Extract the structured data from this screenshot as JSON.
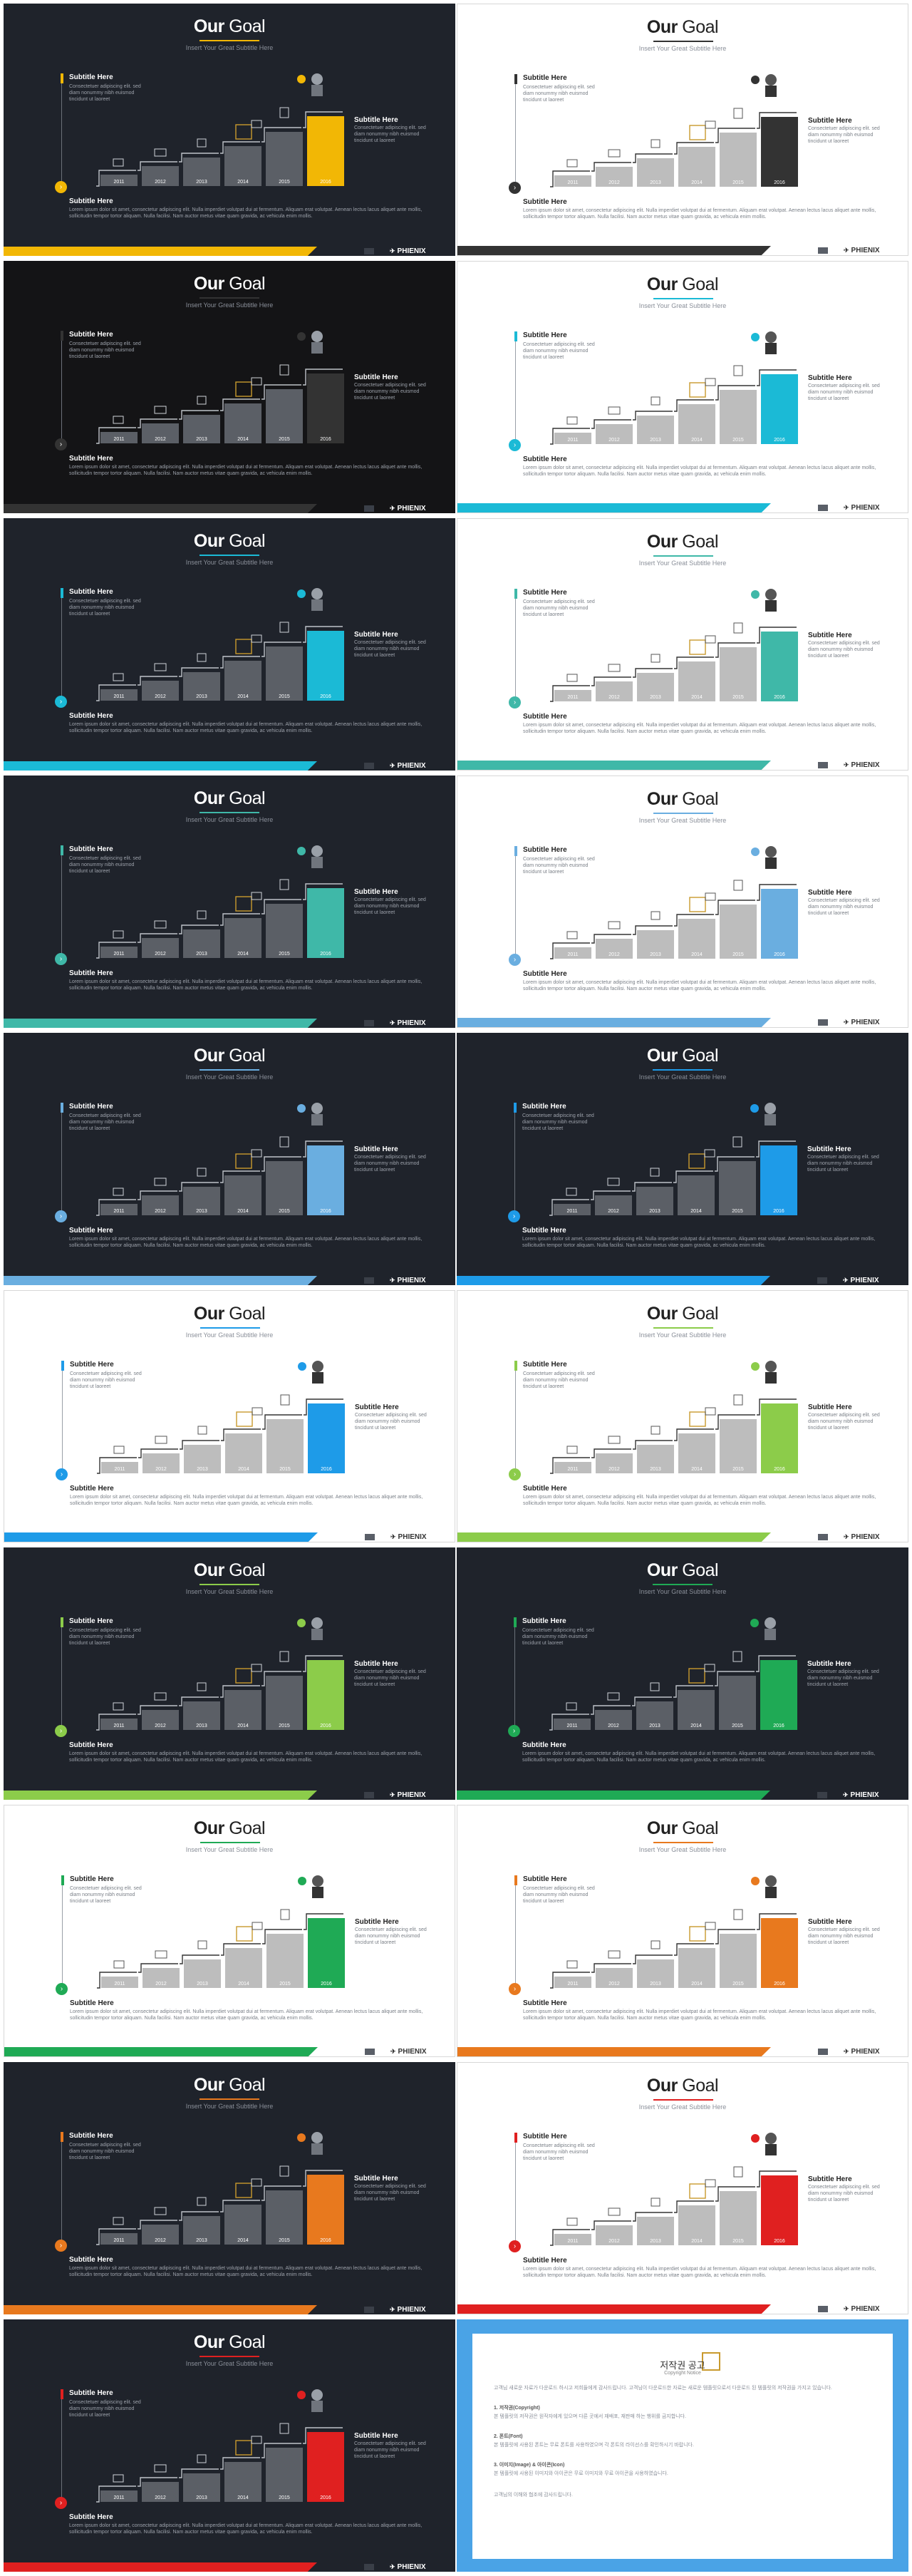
{
  "common": {
    "title_bold": "Our",
    "title_rest": " Goal",
    "subtitle": "Insert Your Great Subtitle Here",
    "left_subtitle": "Subtitle Here",
    "left_desc": "Consectetuer adipiscing elit. sed diam nonummy nibh euismod tincidunt ut laoreet",
    "right_subtitle": "Subtitle Here",
    "right_desc": "Consectetuer adipiscing elit. sed diam nonummy nibh euismod tincidunt ut laoreet",
    "bottom_subtitle": "Subtitle Here",
    "body": "Lorem ipsum dolor sit amet, consectetur adipiscing elit. Nulla imperdiet volutpat dui at fermentum. Aliquam erat volutpat. Aenean lectus lacus aliquet ante mollis, sollicitudin tempor tortor aliquam. Nulla facilisi. Nam auctor metus vitae quam gravida, ac vehicula enim mollis.",
    "years": [
      "2011",
      "2012",
      "2013",
      "2014",
      "2015",
      "2016"
    ],
    "logo": "PHIENIX",
    "circle_glyph": "›"
  },
  "slides": [
    {
      "theme": "dark",
      "accent": "#f2b705",
      "page": "1"
    },
    {
      "theme": "light",
      "accent": "#333333",
      "page": "2"
    },
    {
      "theme": "black",
      "accent": "#333333",
      "page": "3"
    },
    {
      "theme": "light",
      "accent": "#1bbad6",
      "page": "4"
    },
    {
      "theme": "dark",
      "accent": "#1bbad6",
      "page": "5"
    },
    {
      "theme": "light",
      "accent": "#3fb8a8",
      "page": "6"
    },
    {
      "theme": "dark",
      "accent": "#3fb8a8",
      "page": "7"
    },
    {
      "theme": "light",
      "accent": "#6aaee0",
      "page": "8"
    },
    {
      "theme": "dark",
      "accent": "#6aaee0",
      "page": "9"
    },
    {
      "theme": "dark",
      "accent": "#1e9be8",
      "page": "10"
    },
    {
      "theme": "light",
      "accent": "#1e9be8",
      "page": "11"
    },
    {
      "theme": "light",
      "accent": "#8ccc4a",
      "page": "12"
    },
    {
      "theme": "dark",
      "accent": "#8ccc4a",
      "page": "13"
    },
    {
      "theme": "dark",
      "accent": "#1faa55",
      "page": "14"
    },
    {
      "theme": "light",
      "accent": "#1faa55",
      "page": "15"
    },
    {
      "theme": "light",
      "accent": "#e8791e",
      "page": "16"
    },
    {
      "theme": "dark",
      "accent": "#e8791e",
      "page": "17"
    },
    {
      "theme": "light",
      "accent": "#e02020",
      "page": "18"
    },
    {
      "theme": "dark",
      "accent": "#e02020",
      "page": "19"
    }
  ],
  "notice": {
    "title": "저작권 공고",
    "subtitle": "Copyright Notice",
    "intro": "고객님 새로운 자료가 다운로드 하시고 저희들에게 감사드립니다. 고객님이 다운로드한 자료는 새로운 템플릿으로서 다운로드 된 템플릿의 저작권을 가지고 있습니다.",
    "p1_head": "1. 저작권(Copyright)",
    "p1": "본 템플릿의 저작권은 원작자에게 있으며 다른 곳에서 재배포, 재판매 하는 행위를 금지합니다.",
    "p2_head": "2. 폰트(Font)",
    "p2": "본 템플릿에 사용된 폰트는 무료 폰트를 사용하였으며 각 폰트의 라이선스를 확인하시기 바랍니다.",
    "p3_head": "3. 이미지(Image) & 아이콘(Icon)",
    "p3": "본 템플릿에 사용된 이미지와 아이콘은 무료 이미지와 무료 아이콘을 사용하였습니다.",
    "outro": "고객님의 이해와 협조에 감사드립니다."
  }
}
